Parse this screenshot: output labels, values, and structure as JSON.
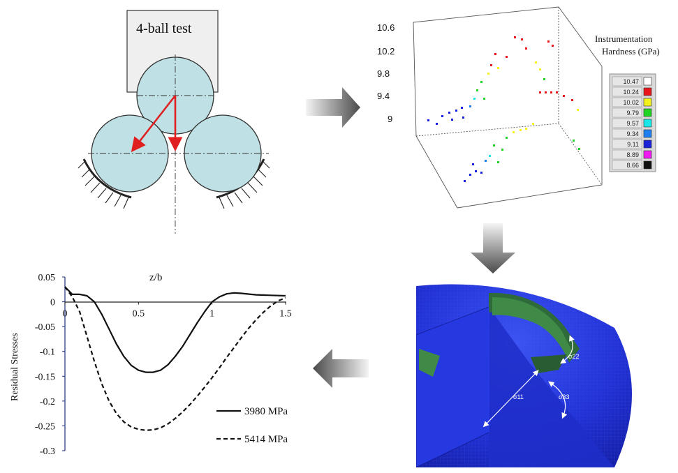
{
  "four_ball": {
    "title": "4-ball test"
  },
  "hardness_map": {
    "z_ticks": [
      "10.6",
      "10.2",
      "9.8",
      "9.4",
      "9"
    ],
    "legend_title_line1": "Instrumentation",
    "legend_title_line2": "Hardness (GPa)",
    "legend": [
      {
        "value": "10.47",
        "color": "#ffffff"
      },
      {
        "value": "10.24",
        "color": "#e8161b"
      },
      {
        "value": "10.02",
        "color": "#f4f21c"
      },
      {
        "value": "9.79",
        "color": "#22d422"
      },
      {
        "value": "9.57",
        "color": "#19e6e6"
      },
      {
        "value": "9.34",
        "color": "#1e7ef0"
      },
      {
        "value": "9.11",
        "color": "#1a22d8"
      },
      {
        "value": "8.89",
        "color": "#f018f0"
      },
      {
        "value": "8.66",
        "color": "#111111"
      }
    ]
  },
  "fe_model": {
    "label_s11": "σ11",
    "label_s22": "σ22",
    "label_s33": "σ33"
  },
  "chart_data": {
    "type": "line",
    "xlabel": "z/b",
    "ylabel": "Residual Stresses",
    "xlim": [
      0,
      1.5
    ],
    "ylim": [
      -0.3,
      0.05
    ],
    "x_ticks": [
      "0",
      "0.5",
      "1",
      "1.5"
    ],
    "y_ticks": [
      "0.05",
      "0",
      "-0.05",
      "-0.1",
      "-0.15",
      "-0.2",
      "-0.25",
      "-0.3"
    ],
    "legend_position": "bottom-right",
    "series": [
      {
        "name": "3980 MPa",
        "style": "solid",
        "x": [
          0,
          0.05,
          0.1,
          0.15,
          0.2,
          0.25,
          0.3,
          0.35,
          0.4,
          0.45,
          0.5,
          0.55,
          0.6,
          0.65,
          0.7,
          0.75,
          0.8,
          0.85,
          0.9,
          0.95,
          1.0,
          1.05,
          1.1,
          1.15,
          1.2,
          1.3,
          1.4,
          1.5
        ],
        "y": [
          0.03,
          0.015,
          0.015,
          0.012,
          0.0,
          -0.025,
          -0.055,
          -0.085,
          -0.11,
          -0.128,
          -0.138,
          -0.142,
          -0.142,
          -0.138,
          -0.127,
          -0.11,
          -0.09,
          -0.066,
          -0.042,
          -0.02,
          0.0,
          0.01,
          0.016,
          0.018,
          0.017,
          0.014,
          0.013,
          0.012
        ]
      },
      {
        "name": "5414 MPa",
        "style": "dashed",
        "x": [
          0,
          0.05,
          0.1,
          0.15,
          0.2,
          0.25,
          0.3,
          0.35,
          0.4,
          0.45,
          0.5,
          0.55,
          0.6,
          0.65,
          0.7,
          0.75,
          0.8,
          0.85,
          0.9,
          0.95,
          1.0,
          1.05,
          1.1,
          1.15,
          1.2,
          1.25,
          1.3,
          1.35,
          1.4,
          1.45,
          1.5
        ],
        "y": [
          0.03,
          0.01,
          -0.02,
          -0.07,
          -0.12,
          -0.165,
          -0.2,
          -0.225,
          -0.242,
          -0.252,
          -0.257,
          -0.259,
          -0.258,
          -0.254,
          -0.246,
          -0.235,
          -0.222,
          -0.207,
          -0.19,
          -0.172,
          -0.153,
          -0.133,
          -0.112,
          -0.092,
          -0.072,
          -0.053,
          -0.036,
          -0.021,
          -0.008,
          0.002,
          0.008
        ]
      }
    ]
  }
}
